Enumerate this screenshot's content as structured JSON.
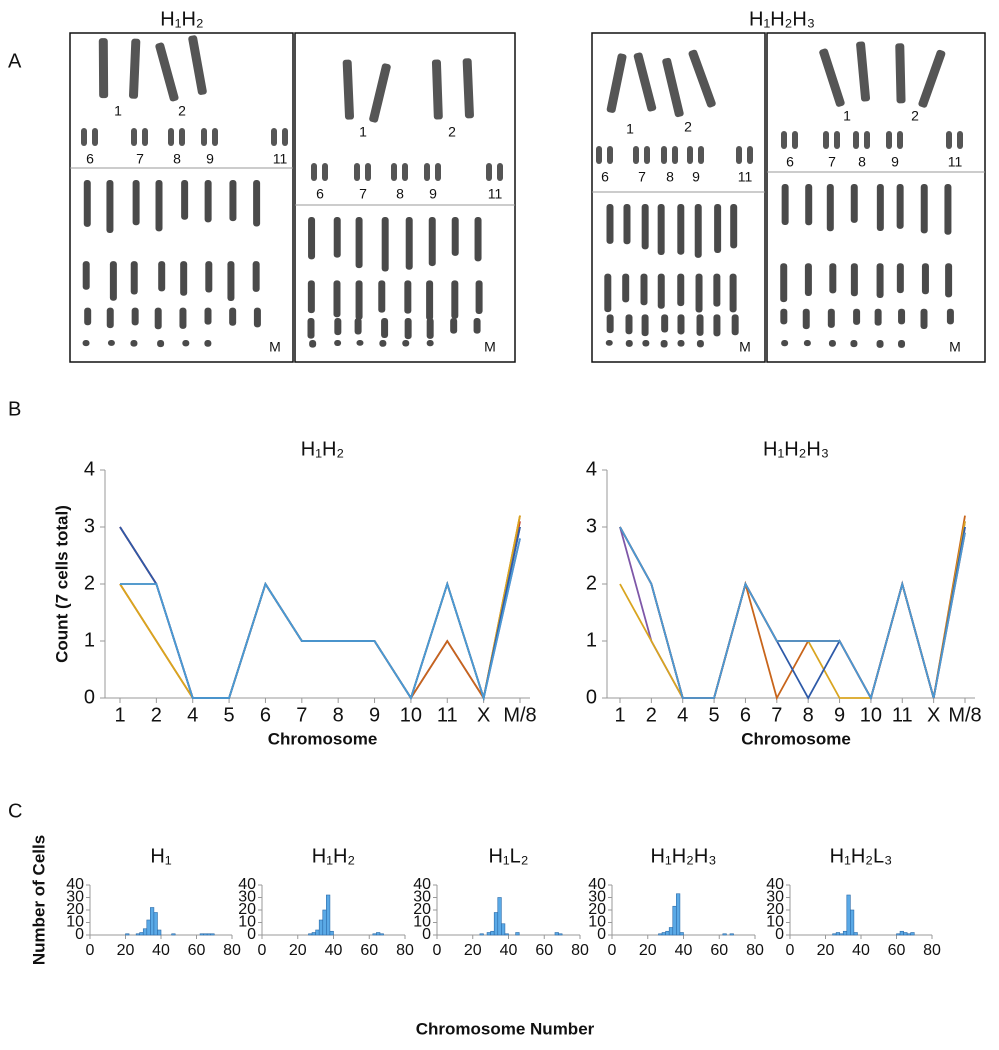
{
  "panel_labels": [
    "A",
    "B",
    "C"
  ],
  "panel_a": {
    "titles": [
      "H₁H₂",
      "H₁H₂H₃"
    ],
    "karyotypes": [
      {
        "labels": [
          "1",
          "2",
          "6",
          "7",
          "8",
          "9",
          "11",
          "M"
        ]
      },
      {
        "labels": [
          "1",
          "2",
          "6",
          "7",
          "8",
          "9",
          "11",
          "M"
        ]
      },
      {
        "labels": [
          "1",
          "2",
          "6",
          "7",
          "8",
          "9",
          "11",
          "M"
        ]
      },
      {
        "labels": [
          "1",
          "2",
          "6",
          "7",
          "8",
          "9",
          "11",
          "M"
        ]
      }
    ]
  },
  "panel_c": {
    "ylabel": "Number of Cells",
    "xlabel": "Chromosome Number"
  },
  "chart_data": [
    {
      "type": "line",
      "title": "H₁H₂",
      "ylabel": "Count (7 cells total)",
      "xlabel": "Chromosome",
      "categories": [
        "1",
        "2",
        "4",
        "5",
        "6",
        "7",
        "8",
        "9",
        "10",
        "11",
        "X",
        "M/8"
      ],
      "ylim": [
        0,
        4
      ],
      "yticks": [
        0,
        1,
        2,
        3,
        4
      ],
      "series": [
        {
          "color": "#7e57a8",
          "values": [
            3,
            2,
            0,
            0,
            2,
            1,
            1,
            1,
            0,
            1,
            0,
            2.8
          ]
        },
        {
          "color": "#c0392b",
          "values": [
            3,
            2,
            0,
            0,
            2,
            1,
            1,
            1,
            0,
            2,
            0,
            3.1
          ]
        },
        {
          "color": "#c8651b",
          "values": [
            2,
            1,
            0,
            0,
            2,
            1,
            1,
            1,
            0,
            1,
            0,
            3.2
          ]
        },
        {
          "color": "#d9a520",
          "values": [
            2,
            1,
            0,
            0,
            2,
            1,
            1,
            1,
            0,
            2,
            0,
            3.2
          ]
        },
        {
          "color": "#8a8a8a",
          "values": [
            2,
            2,
            0,
            0,
            2,
            1,
            1,
            1,
            0,
            2,
            0,
            3
          ]
        },
        {
          "color": "#2e5aa8",
          "values": [
            3,
            2,
            0,
            0,
            2,
            1,
            1,
            1,
            0,
            2,
            0,
            3
          ]
        },
        {
          "color": "#4a9ad4",
          "values": [
            2,
            2,
            0,
            0,
            2,
            1,
            1,
            1,
            0,
            2,
            0,
            2.8
          ]
        }
      ]
    },
    {
      "type": "line",
      "title": "H₁H₂H₃",
      "xlabel": "Chromosome",
      "categories": [
        "1",
        "2",
        "4",
        "5",
        "6",
        "7",
        "8",
        "9",
        "10",
        "11",
        "X",
        "M/8"
      ],
      "ylim": [
        0,
        4
      ],
      "yticks": [
        0,
        1,
        2,
        3,
        4
      ],
      "series": [
        {
          "color": "#8a8a8a",
          "values": [
            3,
            2,
            0,
            0,
            2,
            1,
            1,
            1,
            0,
            2,
            0,
            3
          ]
        },
        {
          "color": "#7e57a8",
          "values": [
            3,
            1,
            0,
            0,
            2,
            1,
            1,
            1,
            0,
            2,
            0,
            3.1
          ]
        },
        {
          "color": "#c8651b",
          "values": [
            3,
            2,
            0,
            0,
            2,
            0,
            1,
            1,
            0,
            2,
            0,
            3.2
          ]
        },
        {
          "color": "#d9a520",
          "values": [
            2,
            1,
            0,
            0,
            2,
            1,
            1,
            0,
            0,
            2,
            0,
            3.1
          ]
        },
        {
          "color": "#2e5aa8",
          "values": [
            3,
            2,
            0,
            0,
            2,
            1,
            0,
            1,
            0,
            2,
            0,
            3
          ]
        },
        {
          "color": "#c0392b",
          "values": [
            3,
            2,
            0,
            0,
            2,
            1,
            1,
            1,
            0,
            2,
            0,
            2.9
          ]
        },
        {
          "color": "#4a9ad4",
          "values": [
            3,
            2,
            0,
            0,
            2,
            1,
            1,
            1,
            0,
            2,
            0,
            2.9
          ]
        }
      ]
    },
    {
      "type": "histogram",
      "title": "H₁",
      "color": "#5aa9e6",
      "bins": [
        16,
        18,
        20,
        22,
        24,
        26,
        28,
        30,
        32,
        34,
        36,
        38,
        40,
        42,
        44,
        46,
        48,
        50,
        52,
        54,
        56,
        58,
        60,
        62,
        64,
        66,
        68,
        70
      ],
      "counts": [
        0,
        0,
        1,
        0,
        0,
        1,
        2,
        5,
        12,
        22,
        18,
        4,
        0,
        0,
        0,
        1,
        0,
        0,
        0,
        0,
        0,
        0,
        0,
        1,
        1,
        1,
        1
      ],
      "xlim": [
        0,
        80
      ],
      "xticks": [
        0,
        20,
        40,
        60,
        80
      ],
      "ylim": [
        0,
        40
      ],
      "yticks": [
        0,
        10,
        20,
        30,
        40
      ]
    },
    {
      "type": "histogram",
      "title": "H₁H₂",
      "color": "#5aa9e6",
      "bins": [
        16,
        18,
        20,
        22,
        24,
        26,
        28,
        30,
        32,
        34,
        36,
        38,
        40,
        42,
        44,
        46,
        48,
        50,
        52,
        54,
        56,
        58,
        60,
        62,
        64,
        66,
        68,
        70
      ],
      "counts": [
        0,
        0,
        0,
        0,
        0,
        1,
        2,
        4,
        12,
        20,
        32,
        3,
        0,
        0,
        0,
        0,
        0,
        0,
        0,
        0,
        0,
        0,
        0,
        1,
        2,
        1,
        0
      ],
      "xlim": [
        0,
        80
      ],
      "xticks": [
        0,
        20,
        40,
        60,
        80
      ],
      "ylim": [
        0,
        40
      ],
      "yticks": [
        0,
        10,
        20,
        30,
        40
      ]
    },
    {
      "type": "histogram",
      "title": "H₁L₂",
      "color": "#5aa9e6",
      "bins": [
        16,
        18,
        20,
        22,
        24,
        26,
        28,
        30,
        32,
        34,
        36,
        38,
        40,
        42,
        44,
        46,
        48,
        50,
        52,
        54,
        56,
        58,
        60,
        62,
        64,
        66,
        68,
        70
      ],
      "counts": [
        0,
        0,
        0,
        0,
        1,
        0,
        2,
        3,
        18,
        30,
        9,
        1,
        0,
        0,
        2,
        0,
        0,
        0,
        0,
        0,
        0,
        0,
        0,
        0,
        0,
        2,
        1
      ],
      "xlim": [
        0,
        80
      ],
      "xticks": [
        0,
        20,
        40,
        60,
        80
      ],
      "ylim": [
        0,
        40
      ],
      "yticks": [
        0,
        10,
        20,
        30,
        40
      ]
    },
    {
      "type": "histogram",
      "title": "H₁H₂H₃",
      "color": "#5aa9e6",
      "bins": [
        16,
        18,
        20,
        22,
        24,
        26,
        28,
        30,
        32,
        34,
        36,
        38,
        40,
        42,
        44,
        46,
        48,
        50,
        52,
        54,
        56,
        58,
        60,
        62,
        64,
        66,
        68,
        70
      ],
      "counts": [
        0,
        0,
        0,
        0,
        0,
        1,
        2,
        3,
        6,
        23,
        33,
        2,
        0,
        0,
        0,
        0,
        0,
        0,
        0,
        0,
        0,
        0,
        0,
        1,
        0,
        1,
        0
      ],
      "xlim": [
        0,
        80
      ],
      "xticks": [
        0,
        20,
        40,
        60,
        80
      ],
      "ylim": [
        0,
        40
      ],
      "yticks": [
        0,
        10,
        20,
        30,
        40
      ]
    },
    {
      "type": "histogram",
      "title": "H₁H₂L₃",
      "color": "#5aa9e6",
      "bins": [
        16,
        18,
        20,
        22,
        24,
        26,
        28,
        30,
        32,
        34,
        36,
        38,
        40,
        42,
        44,
        46,
        48,
        50,
        52,
        54,
        56,
        58,
        60,
        62,
        64,
        66,
        68,
        70
      ],
      "counts": [
        0,
        0,
        0,
        0,
        1,
        2,
        1,
        3,
        32,
        20,
        2,
        0,
        0,
        0,
        0,
        0,
        0,
        0,
        0,
        0,
        0,
        0,
        1,
        3,
        2,
        1,
        2
      ],
      "xlim": [
        0,
        80
      ],
      "xticks": [
        0,
        20,
        40,
        60,
        80
      ],
      "ylim": [
        0,
        40
      ],
      "yticks": [
        0,
        10,
        20,
        30,
        40
      ]
    }
  ]
}
